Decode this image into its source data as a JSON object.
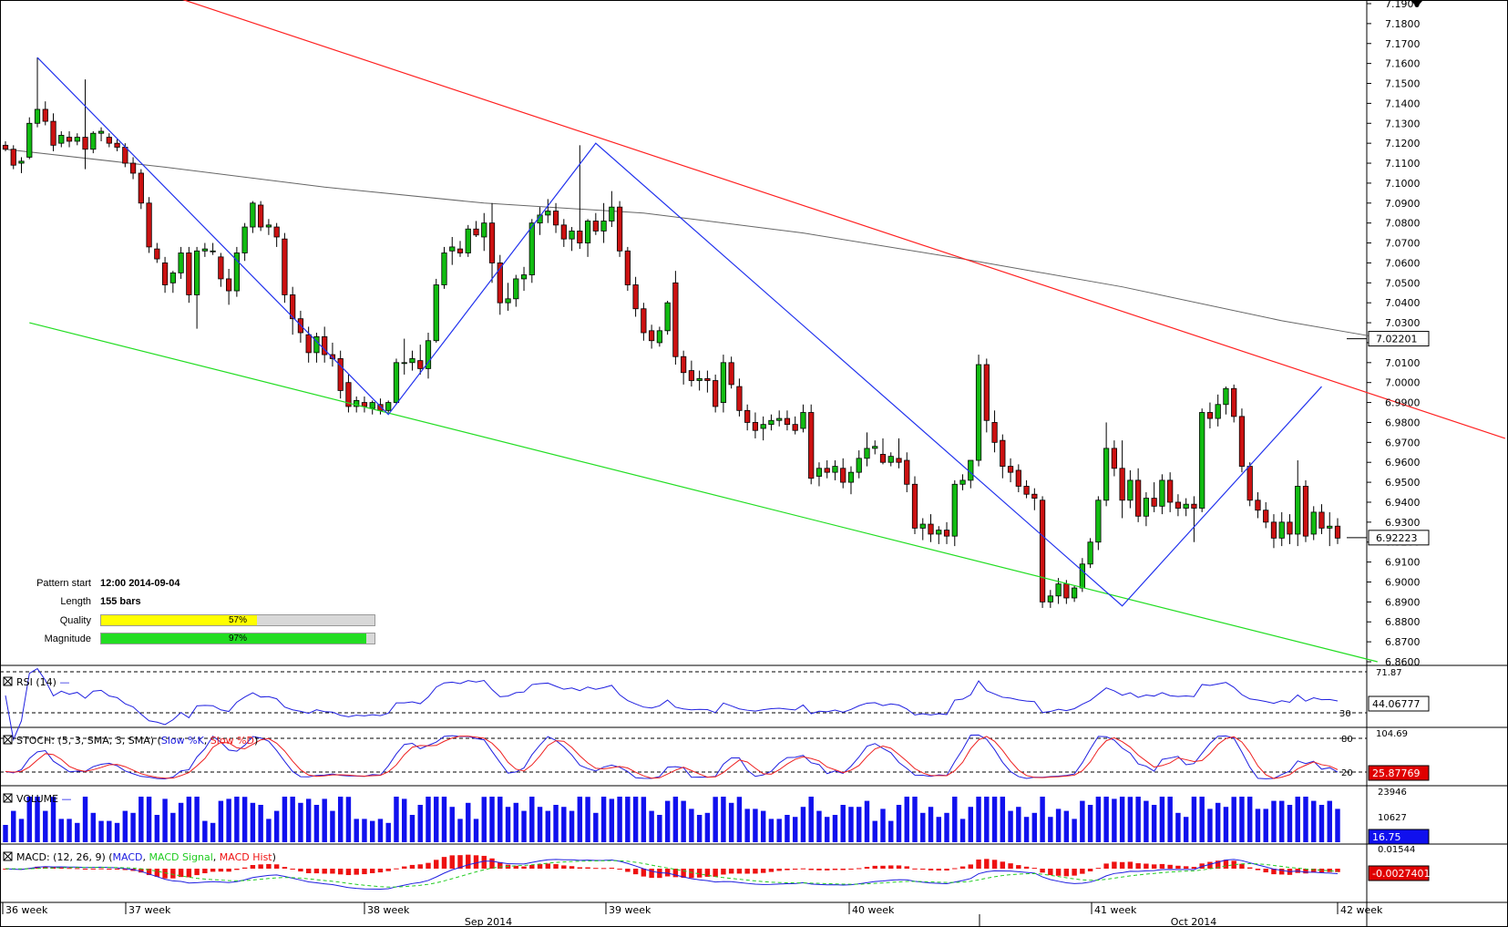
{
  "price_axis": {
    "ticks": [
      "7.1900",
      "7.1800",
      "7.1700",
      "7.1600",
      "7.1500",
      "7.1400",
      "7.1300",
      "7.1200",
      "7.1100",
      "7.1000",
      "7.0900",
      "7.0800",
      "7.0700",
      "7.0600",
      "7.0500",
      "7.0400",
      "7.0300",
      "7.0200",
      "7.0100",
      "7.0000",
      "6.9900",
      "6.9800",
      "6.9700",
      "6.9600",
      "6.9500",
      "6.9400",
      "6.9300",
      "6.9200",
      "6.9100",
      "6.9000",
      "6.8900",
      "6.8800",
      "6.8700",
      "6.8600"
    ],
    "ma_label": "7.02201",
    "last_label": "6.92223"
  },
  "pattern": {
    "start_label": "Pattern start",
    "start_value": "12:00 2014-09-04",
    "length_label": "Length",
    "length_value": "155 bars",
    "quality_label": "Quality",
    "quality_value": "57%",
    "quality_pct": 57,
    "magnitude_label": "Magnitude",
    "magnitude_value": "97%",
    "magnitude_pct": 97
  },
  "panels": {
    "rsi": {
      "title": "RSI (14)",
      "top_label": "71.87",
      "level_label": "30",
      "value": "44.06777"
    },
    "stoch": {
      "title_prefix": "STOCH: (5, 3, SMA, 3, SMA) (",
      "k": "Slow %K",
      "d": "Slow %D",
      "suffix": ")",
      "top_label": "104.69",
      "level80": "80",
      "level20": "20",
      "value": "25.87769"
    },
    "volume": {
      "title": "VOLUME",
      "top_label": "23946",
      "mid_label": "10627",
      "value": "16.75"
    },
    "macd": {
      "title_prefix": "MACD: (12, 26, 9) (",
      "macd": "MACD",
      "signal": "MACD Signal",
      "hist": "MACD Hist",
      "suffix": ")",
      "top_label": "0.01544",
      "value": "-0.0027401"
    }
  },
  "time_axis": {
    "weeks": [
      "36 week",
      "37 week",
      "38 week",
      "39 week",
      "40 week",
      "41 week",
      "42 week"
    ],
    "months": [
      "Sep 2014",
      "Oct 2014"
    ]
  },
  "colors": {
    "up": "#11bb11",
    "down": "#cc1111",
    "ma": "#666666",
    "upper_trend": "#ff2020",
    "lower_trend": "#22dd22",
    "zigzag": "#2233ee",
    "quality_fill": "#ffff00",
    "magnitude_fill": "#22dd22",
    "rsi": "#2020e0",
    "stoch_k": "#2020e0",
    "stoch_d": "#ee2020",
    "volume": "#1010ee",
    "macd": "#2020e0",
    "signal": "#22cc22",
    "hist": "#ee1111"
  },
  "chart_data": {
    "type": "candlestick",
    "y_axis": {
      "min": 6.86,
      "max": 7.19,
      "tick_step": 0.01
    },
    "x_axis_labels": [
      "36 week",
      "37 week",
      "38 week",
      "39 week",
      "40 week",
      "41 week",
      "42 week"
    ],
    "candles": [
      [
        7.119,
        7.121,
        7.116,
        7.117
      ],
      [
        7.117,
        7.119,
        7.107,
        7.109
      ],
      [
        7.11,
        7.113,
        7.105,
        7.111
      ],
      [
        7.113,
        7.133,
        7.112,
        7.13
      ],
      [
        7.13,
        7.163,
        7.128,
        7.137
      ],
      [
        7.137,
        7.141,
        7.129,
        7.131
      ],
      [
        7.131,
        7.135,
        7.116,
        7.119
      ],
      [
        7.12,
        7.126,
        7.118,
        7.124
      ],
      [
        7.123,
        7.126,
        7.118,
        7.121
      ],
      [
        7.121,
        7.125,
        7.119,
        7.123
      ],
      [
        7.123,
        7.152,
        7.107,
        7.117
      ],
      [
        7.117,
        7.126,
        7.115,
        7.125
      ],
      [
        7.125,
        7.128,
        7.121,
        7.126
      ],
      [
        7.123,
        7.125,
        7.118,
        7.12
      ],
      [
        7.12,
        7.122,
        7.116,
        7.118
      ],
      [
        7.118,
        7.12,
        7.108,
        7.11
      ],
      [
        7.11,
        7.113,
        7.102,
        7.105
      ],
      [
        7.105,
        7.107,
        7.087,
        7.09
      ],
      [
        7.09,
        7.093,
        7.065,
        7.068
      ],
      [
        7.067,
        7.07,
        7.06,
        7.062
      ],
      [
        7.06,
        7.063,
        7.045,
        7.049
      ],
      [
        7.05,
        7.056,
        7.045,
        7.055
      ],
      [
        7.055,
        7.068,
        7.052,
        7.065
      ],
      [
        7.065,
        7.068,
        7.04,
        7.044
      ],
      [
        7.044,
        7.068,
        7.027,
        7.066
      ],
      [
        7.066,
        7.07,
        7.063,
        7.067
      ],
      [
        7.066,
        7.07,
        7.064,
        7.066
      ],
      [
        7.063,
        7.065,
        7.048,
        7.052
      ],
      [
        7.052,
        7.057,
        7.039,
        7.046
      ],
      [
        7.046,
        7.068,
        7.043,
        7.065
      ],
      [
        7.065,
        7.08,
        7.061,
        7.078
      ],
      [
        7.078,
        7.091,
        7.075,
        7.09
      ],
      [
        7.089,
        7.091,
        7.076,
        7.078
      ],
      [
        7.078,
        7.082,
        7.074,
        7.079
      ],
      [
        7.078,
        7.08,
        7.068,
        7.073
      ],
      [
        7.072,
        7.075,
        7.04,
        7.044
      ],
      [
        7.044,
        7.048,
        7.024,
        7.032
      ],
      [
        7.032,
        7.036,
        7.02,
        7.025
      ],
      [
        7.024,
        7.028,
        7.01,
        7.015
      ],
      [
        7.015,
        7.025,
        7.01,
        7.023
      ],
      [
        7.023,
        7.028,
        7.01,
        7.014
      ],
      [
        7.014,
        7.02,
        7.008,
        7.012
      ],
      [
        7.012,
        7.016,
        6.992,
        6.996
      ],
      [
        7.0,
        7.004,
        6.985,
        6.988
      ],
      [
        6.988,
        6.993,
        6.985,
        6.991
      ],
      [
        6.99,
        6.993,
        6.985,
        6.988
      ],
      [
        6.987,
        6.991,
        6.984,
        6.99
      ],
      [
        6.989,
        6.992,
        6.984,
        6.986
      ],
      [
        6.986,
        6.991,
        6.985,
        6.99
      ],
      [
        6.99,
        7.012,
        6.989,
        7.01
      ],
      [
        7.01,
        7.022,
        7.004,
        7.01
      ],
      [
        7.01,
        7.016,
        7.006,
        7.012
      ],
      [
        7.011,
        7.019,
        7.004,
        7.007
      ],
      [
        7.007,
        7.025,
        7.002,
        7.021
      ],
      [
        7.021,
        7.052,
        7.02,
        7.049
      ],
      [
        7.049,
        7.068,
        7.047,
        7.065
      ],
      [
        7.066,
        7.073,
        7.059,
        7.068
      ],
      [
        7.067,
        7.071,
        7.063,
        7.065
      ],
      [
        7.065,
        7.079,
        7.063,
        7.077
      ],
      [
        7.077,
        7.081,
        7.073,
        7.074
      ],
      [
        7.073,
        7.085,
        7.066,
        7.08
      ],
      [
        7.08,
        7.09,
        7.05,
        7.06
      ],
      [
        7.06,
        7.064,
        7.034,
        7.04
      ],
      [
        7.04,
        7.05,
        7.036,
        7.042
      ],
      [
        7.042,
        7.054,
        7.038,
        7.052
      ],
      [
        7.052,
        7.058,
        7.046,
        7.054
      ],
      [
        7.054,
        7.082,
        7.05,
        7.08
      ],
      [
        7.08,
        7.088,
        7.074,
        7.084
      ],
      [
        7.084,
        7.092,
        7.08,
        7.086
      ],
      [
        7.086,
        7.09,
        7.075,
        7.079
      ],
      [
        7.079,
        7.082,
        7.068,
        7.072
      ],
      [
        7.072,
        7.078,
        7.066,
        7.076
      ],
      [
        7.076,
        7.119,
        7.067,
        7.07
      ],
      [
        7.07,
        7.082,
        7.063,
        7.081
      ],
      [
        7.081,
        7.085,
        7.074,
        7.076
      ],
      [
        7.076,
        7.09,
        7.07,
        7.081
      ],
      [
        7.081,
        7.096,
        7.078,
        7.088
      ],
      [
        7.088,
        7.091,
        7.063,
        7.066
      ],
      [
        7.066,
        7.068,
        7.046,
        7.049
      ],
      [
        7.049,
        7.053,
        7.033,
        7.037
      ],
      [
        7.037,
        7.04,
        7.021,
        7.025
      ],
      [
        7.026,
        7.029,
        7.017,
        7.021
      ],
      [
        7.02,
        7.028,
        7.018,
        7.026
      ],
      [
        7.026,
        7.041,
        7.024,
        7.04
      ],
      [
        7.05,
        7.056,
        7.009,
        7.013
      ],
      [
        7.013,
        7.016,
        6.999,
        7.005
      ],
      [
        7.006,
        7.011,
        6.998,
        7.001
      ],
      [
        7.001,
        7.006,
        6.996,
        7.002
      ],
      [
        7.002,
        7.006,
        6.995,
        7.001
      ],
      [
        7.001,
        7.004,
        6.985,
        6.988
      ],
      [
        6.99,
        7.014,
        6.985,
        7.01
      ],
      [
        7.01,
        7.013,
        6.997,
        6.999
      ],
      [
        6.998,
        7.002,
        6.983,
        6.986
      ],
      [
        6.986,
        6.989,
        6.976,
        6.98
      ],
      [
        6.98,
        6.985,
        6.972,
        6.976
      ],
      [
        6.977,
        6.983,
        6.971,
        6.979
      ],
      [
        6.979,
        6.984,
        6.976,
        6.981
      ],
      [
        6.981,
        6.986,
        6.978,
        6.982
      ],
      [
        6.982,
        6.986,
        6.976,
        6.979
      ],
      [
        6.979,
        6.983,
        6.974,
        6.976
      ],
      [
        6.977,
        6.989,
        6.975,
        6.985
      ],
      [
        6.985,
        6.989,
        6.949,
        6.952
      ],
      [
        6.953,
        6.96,
        6.948,
        6.957
      ],
      [
        6.957,
        6.961,
        6.952,
        6.955
      ],
      [
        6.955,
        6.961,
        6.951,
        6.958
      ],
      [
        6.957,
        6.962,
        6.947,
        6.95
      ],
      [
        6.95,
        6.958,
        6.944,
        6.955
      ],
      [
        6.955,
        6.966,
        6.952,
        6.962
      ],
      [
        6.962,
        6.975,
        6.958,
        6.967
      ],
      [
        6.967,
        6.971,
        6.964,
        6.968
      ],
      [
        6.964,
        6.972,
        6.959,
        6.96
      ],
      [
        6.96,
        6.965,
        6.958,
        6.963
      ],
      [
        6.962,
        6.972,
        6.957,
        6.96
      ],
      [
        6.961,
        6.965,
        6.945,
        6.949
      ],
      [
        6.949,
        6.953,
        6.924,
        6.927
      ],
      [
        6.927,
        6.932,
        6.921,
        6.929
      ],
      [
        6.929,
        6.934,
        6.92,
        6.924
      ],
      [
        6.924,
        6.928,
        6.919,
        6.926
      ],
      [
        6.926,
        6.93,
        6.919,
        6.923
      ],
      [
        6.923,
        6.951,
        6.918,
        6.949
      ],
      [
        6.949,
        6.954,
        6.946,
        6.951
      ],
      [
        6.951,
        6.961,
        6.947,
        6.961
      ],
      [
        6.961,
        7.014,
        6.958,
        7.009
      ],
      [
        7.009,
        7.012,
        6.975,
        6.981
      ],
      [
        6.98,
        6.986,
        6.965,
        6.97
      ],
      [
        6.971,
        6.974,
        6.952,
        6.958
      ],
      [
        6.958,
        6.962,
        6.95,
        6.955
      ],
      [
        6.956,
        6.959,
        6.945,
        6.948
      ],
      [
        6.948,
        6.951,
        6.942,
        6.944
      ],
      [
        6.944,
        6.947,
        6.936,
        6.942
      ],
      [
        6.941,
        6.943,
        6.887,
        6.89
      ],
      [
        6.89,
        6.896,
        6.887,
        6.893
      ],
      [
        6.893,
        6.902,
        6.889,
        6.899
      ],
      [
        6.899,
        6.901,
        6.889,
        6.892
      ],
      [
        6.892,
        6.898,
        6.89,
        6.897
      ],
      [
        6.897,
        6.912,
        6.895,
        6.909
      ],
      [
        6.909,
        6.922,
        6.907,
        6.92
      ],
      [
        6.92,
        6.943,
        6.916,
        6.941
      ],
      [
        6.941,
        6.98,
        6.938,
        6.967
      ],
      [
        6.967,
        6.971,
        6.953,
        6.957
      ],
      [
        6.957,
        6.971,
        6.932,
        6.941
      ],
      [
        6.941,
        6.956,
        6.937,
        6.951
      ],
      [
        6.951,
        6.957,
        6.93,
        6.933
      ],
      [
        6.933,
        6.945,
        6.928,
        6.942
      ],
      [
        6.942,
        6.95,
        6.935,
        6.938
      ],
      [
        6.938,
        6.954,
        6.934,
        6.951
      ],
      [
        6.951,
        6.955,
        6.935,
        6.94
      ],
      [
        6.94,
        6.944,
        6.933,
        6.937
      ],
      [
        6.937,
        6.942,
        6.933,
        6.939
      ],
      [
        6.939,
        6.943,
        6.92,
        6.937
      ],
      [
        6.937,
        6.987,
        6.935,
        6.985
      ],
      [
        6.985,
        6.99,
        6.977,
        6.982
      ],
      [
        6.982,
        6.994,
        6.978,
        6.989
      ],
      [
        6.989,
        6.998,
        6.984,
        6.997
      ],
      [
        6.997,
        6.999,
        6.98,
        6.983
      ],
      [
        6.983,
        6.987,
        6.955,
        6.958
      ],
      [
        6.958,
        6.96,
        6.938,
        6.941
      ],
      [
        6.941,
        6.945,
        6.932,
        6.936
      ],
      [
        6.936,
        6.94,
        6.927,
        6.93
      ],
      [
        6.93,
        6.934,
        6.917,
        6.922
      ],
      [
        6.922,
        6.935,
        6.918,
        6.93
      ],
      [
        6.93,
        6.934,
        6.919,
        6.924
      ],
      [
        6.924,
        6.961,
        6.918,
        6.948
      ],
      [
        6.948,
        6.951,
        6.92,
        6.923
      ],
      [
        6.924,
        6.938,
        6.921,
        6.935
      ],
      [
        6.935,
        6.939,
        6.924,
        6.927
      ],
      [
        6.927,
        6.935,
        6.918,
        6.928
      ],
      [
        6.928,
        6.932,
        6.919,
        6.922
      ]
    ],
    "moving_average": [
      [
        0,
        7.117
      ],
      [
        20,
        7.108
      ],
      [
        40,
        7.098
      ],
      [
        60,
        7.09
      ],
      [
        80,
        7.085
      ],
      [
        100,
        7.075
      ],
      [
        120,
        7.062
      ],
      [
        140,
        7.048
      ],
      [
        160,
        7.031
      ],
      [
        173,
        7.022
      ]
    ],
    "trendlines": {
      "upper": [
        [
          20,
          7.195
        ],
        [
          188,
          6.972
        ]
      ],
      "lower": [
        [
          3,
          7.03
        ],
        [
          172,
          6.86
        ]
      ],
      "zigzag": [
        [
          4,
          7.163
        ],
        [
          48,
          6.984
        ],
        [
          74,
          7.12
        ],
        [
          140,
          6.888
        ],
        [
          165,
          6.998
        ]
      ]
    }
  }
}
